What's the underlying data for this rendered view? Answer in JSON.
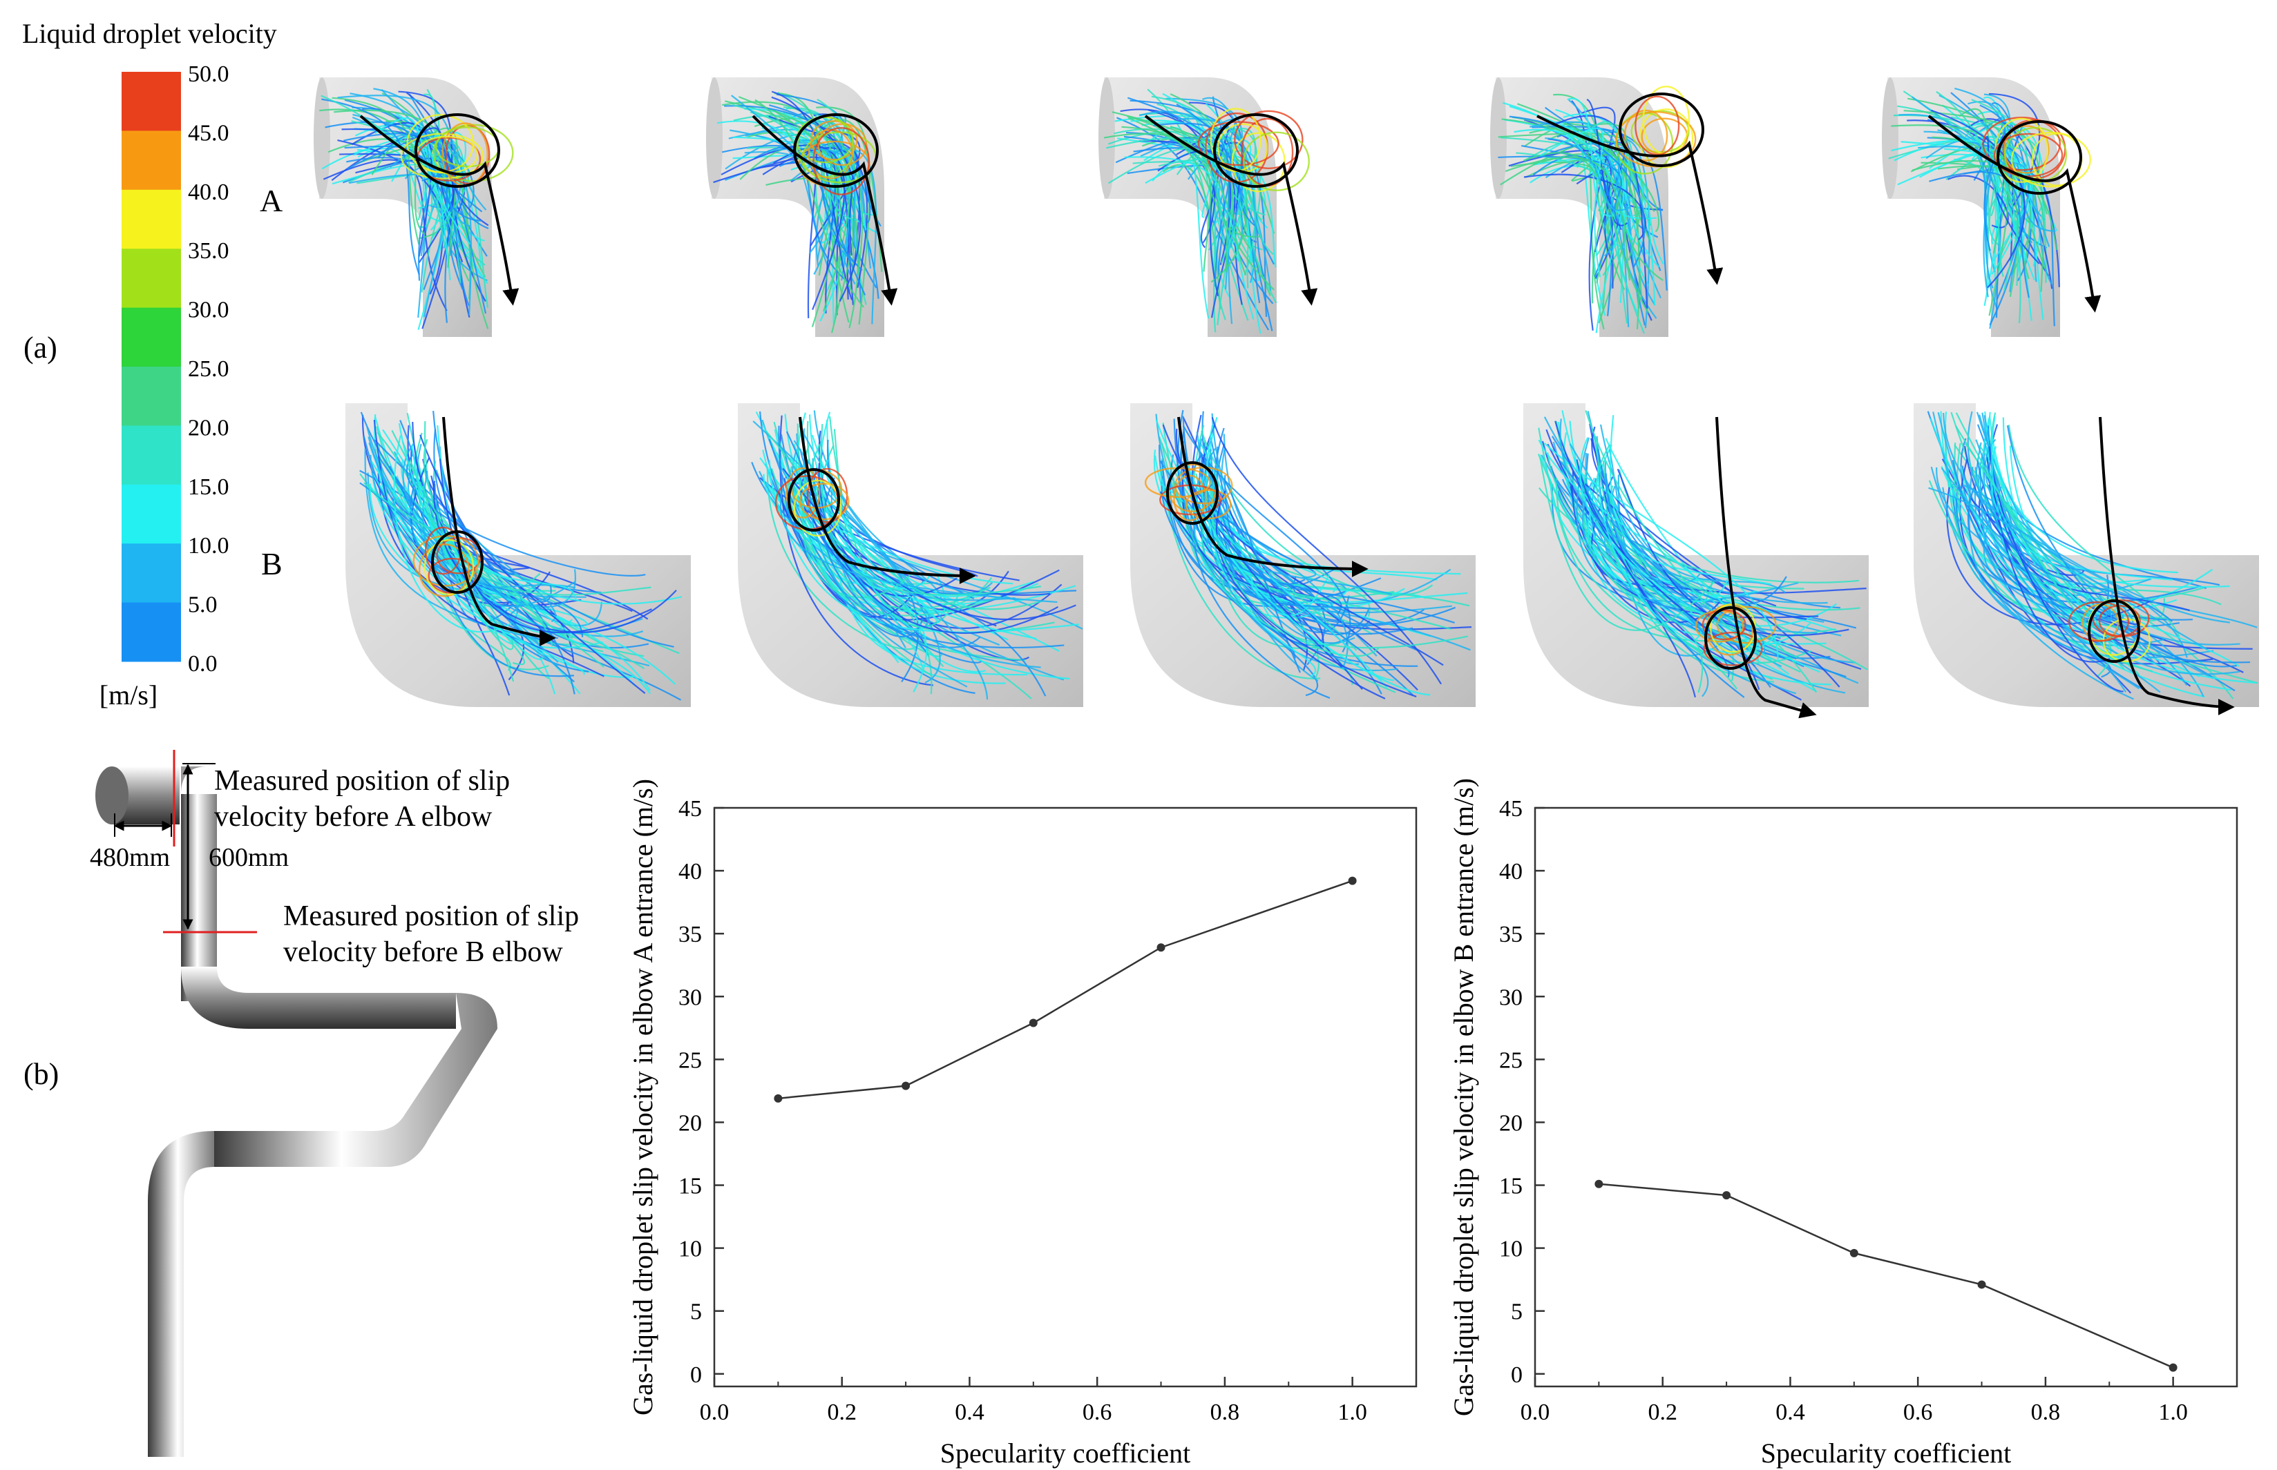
{
  "panel_labels": {
    "a": "(a)",
    "b": "(b)"
  },
  "row_labels": {
    "A": "A",
    "B": "B"
  },
  "colorbar": {
    "title": "Liquid droplet velocity",
    "unit": "[m/s]",
    "ticks": [
      "50.0",
      "45.0",
      "40.0",
      "35.0",
      "30.0",
      "25.0",
      "20.0",
      "15.0",
      "10.0",
      "5.0",
      "0.0"
    ],
    "colors": [
      "#e8401c",
      "#f79a12",
      "#f6f21d",
      "#a2e11a",
      "#2dd43a",
      "#3ed587",
      "#2ee3c7",
      "#24f0f1",
      "#1fb4f2",
      "#1790f4",
      "#1d50f0"
    ]
  },
  "schematic": {
    "label_a": [
      "Measured position of slip",
      "velocity before A elbow"
    ],
    "label_b": [
      "Measured position of slip",
      "velocity before B elbow"
    ],
    "dim_horizontal": "480mm",
    "dim_vertical": "600mm"
  },
  "chart_data": [
    {
      "type": "line",
      "title": "",
      "xlabel": "Specularity coefficient",
      "ylabel": "Gas-liquid droplet slip velocity in elbow A entrance (m/s)",
      "x": [
        0.1,
        0.3,
        0.5,
        0.7,
        1.0
      ],
      "values": [
        21.9,
        22.9,
        27.9,
        33.9,
        39.2
      ],
      "xlim": [
        0.0,
        1.1
      ],
      "ylim": [
        -1,
        45
      ],
      "xticks": [
        "0.0",
        "0.2",
        "0.4",
        "0.6",
        "0.8",
        "1.0"
      ],
      "yticks": [
        "0",
        "5",
        "10",
        "15",
        "20",
        "25",
        "30",
        "35",
        "40",
        "45"
      ],
      "line_color": "#333333"
    },
    {
      "type": "line",
      "title": "",
      "xlabel": "Specularity coefficient",
      "ylabel": "Gas-liquid droplet slip velocity in elbow B entrance (m/s)",
      "x": [
        0.1,
        0.3,
        0.5,
        0.7,
        1.0
      ],
      "values": [
        15.1,
        14.2,
        9.6,
        7.1,
        0.5
      ],
      "xlim": [
        0.0,
        1.1
      ],
      "ylim": [
        -1,
        45
      ],
      "xticks": [
        "0.0",
        "0.2",
        "0.4",
        "0.6",
        "0.8",
        "1.0"
      ],
      "yticks": [
        "0",
        "5",
        "10",
        "15",
        "20",
        "25",
        "30",
        "35",
        "40",
        "45"
      ],
      "line_color": "#333333"
    }
  ]
}
